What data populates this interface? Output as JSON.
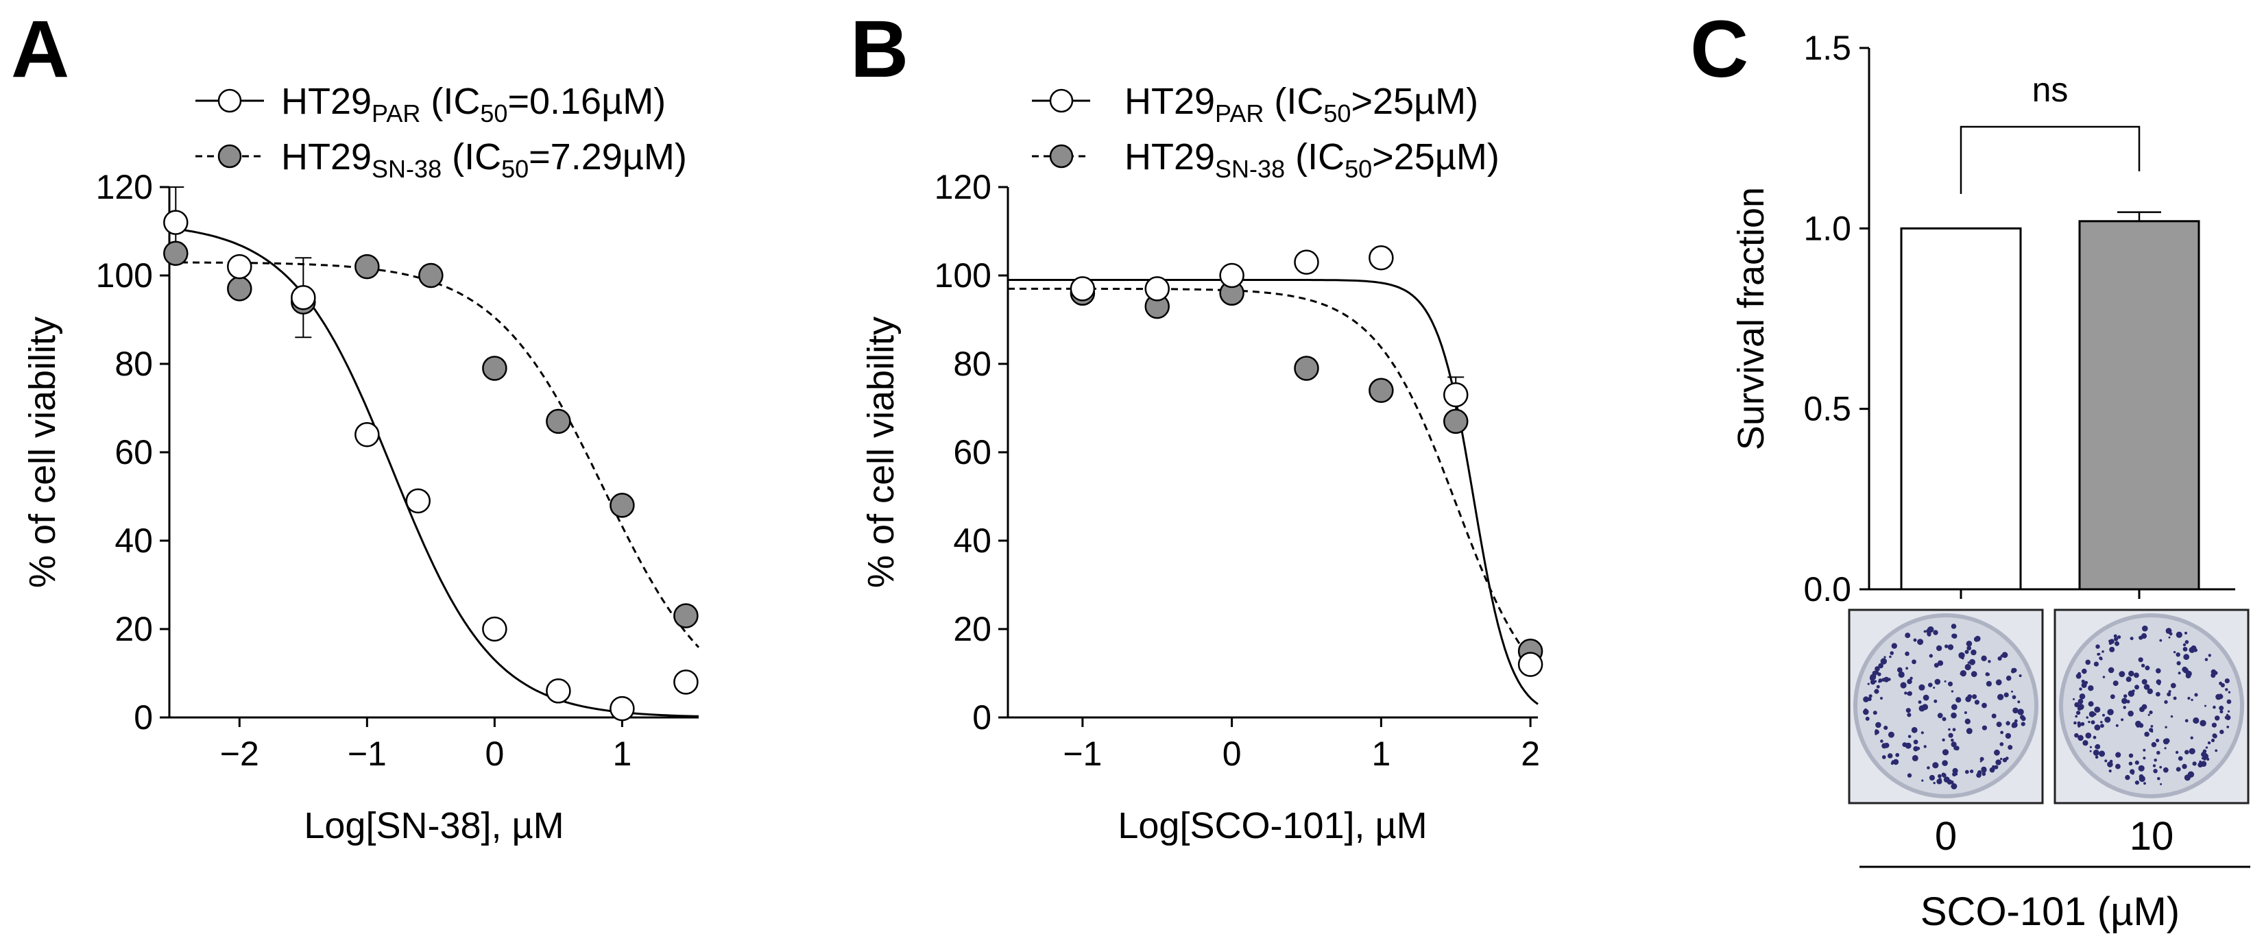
{
  "panels": {
    "a": {
      "letter": "A",
      "xlabel": "Log[SN-38], µM",
      "ylabel": "% of cell viability",
      "legend": [
        {
          "base": "HT29",
          "sub": "PAR",
          "pre": " (IC",
          "ic_sub": "50",
          "post": "=0.16µM)"
        },
        {
          "base": "HT29",
          "sub": "SN-38",
          "pre": " (IC",
          "ic_sub": "50",
          "post": "=7.29µM)"
        }
      ],
      "xticks": [
        "−2",
        "−1",
        "0",
        "1"
      ],
      "yticks": [
        "0",
        "20",
        "40",
        "60",
        "80",
        "100",
        "120"
      ]
    },
    "b": {
      "letter": "B",
      "xlabel": "Log[SCO-101], µM",
      "ylabel": "% of cell viability",
      "legend": [
        {
          "base": "HT29",
          "sub": "PAR",
          "pre": " (IC",
          "ic_sub": "50",
          "post": ">25µM)"
        },
        {
          "base": "HT29",
          "sub": "SN-38",
          "pre": " (IC",
          "ic_sub": "50",
          "post": ">25µM)"
        }
      ],
      "xticks": [
        "−1",
        "0",
        "1",
        "2"
      ],
      "yticks": [
        "0",
        "20",
        "40",
        "60",
        "80",
        "100",
        "120"
      ]
    },
    "c": {
      "letter": "C",
      "ylabel": "Survival fraction",
      "yticks": [
        "0.0",
        "0.5",
        "1.0",
        "1.5"
      ],
      "significance": "ns",
      "categories": [
        "0",
        "10"
      ],
      "group_label": "SCO-101 (µM)"
    }
  },
  "colors": {
    "par_fill": "#ffffff",
    "sn38_fill": "#8c8c8c",
    "bar_control": "#ffffff",
    "bar_treated": "#999999",
    "colony_stain": "#2b2a6e",
    "dish_background": "#dfe2ea"
  },
  "chart_data": [
    {
      "panel": "A",
      "type": "scatter",
      "fit": "sigmoidal dose-response",
      "xlabel": "Log[SN-38], µM",
      "ylabel": "% of cell viability",
      "xlim": [
        -2.55,
        1.6
      ],
      "ylim": [
        0,
        120
      ],
      "grid": false,
      "legend_position": "top",
      "series": [
        {
          "name": "HT29PAR (IC50=0.16µM)",
          "line": "solid",
          "marker_fill": "white",
          "x": [
            -2.5,
            -2.0,
            -1.5,
            -1.0,
            -0.6,
            0.0,
            0.5,
            1.0,
            1.5
          ],
          "y": [
            112,
            102,
            95,
            64,
            49,
            20,
            6,
            2,
            8
          ],
          "fit": {
            "top": 112,
            "bottom": 0,
            "logIC50": -0.8,
            "hill": 1.1
          }
        },
        {
          "name": "HT29SN-38 (IC50=7.29µM)",
          "line": "dashed",
          "marker_fill": "gray",
          "x": [
            -2.5,
            -2.0,
            -1.5,
            -1.0,
            -0.5,
            0.0,
            0.5,
            1.0,
            1.5
          ],
          "y": [
            105,
            97,
            94,
            102,
            100,
            79,
            67,
            48,
            23
          ],
          "fit": {
            "top": 103,
            "bottom": 0,
            "logIC50": 0.86,
            "hill": 1.0
          }
        }
      ]
    },
    {
      "panel": "B",
      "type": "scatter",
      "fit": "sigmoidal dose-response",
      "xlabel": "Log[SCO-101], µM",
      "ylabel": "% of cell viability",
      "xlim": [
        -1.5,
        2.05
      ],
      "ylim": [
        0,
        120
      ],
      "grid": false,
      "legend_position": "top",
      "series": [
        {
          "name": "HT29PAR (IC50>25µM)",
          "line": "solid",
          "marker_fill": "white",
          "x": [
            -1.0,
            -0.5,
            0.0,
            0.5,
            1.0,
            1.5,
            2.0
          ],
          "y": [
            97,
            97,
            100,
            103,
            104,
            73,
            12
          ],
          "fit": {
            "top": 99,
            "bottom": 0,
            "logIC50": 1.62,
            "hill": 3.5
          }
        },
        {
          "name": "HT29SN-38 (IC50>25µM)",
          "line": "dashed",
          "marker_fill": "gray",
          "x": [
            -1.0,
            -0.5,
            0.0,
            0.5,
            1.0,
            1.5,
            2.0
          ],
          "y": [
            96,
            93,
            96,
            79,
            74,
            67,
            15
          ],
          "fit": {
            "top": 97,
            "bottom": 0,
            "logIC50": 1.5,
            "hill": 1.6
          }
        }
      ]
    },
    {
      "panel": "C",
      "type": "bar",
      "categories": [
        "0",
        "10"
      ],
      "values": [
        1.0,
        1.02
      ],
      "error": [
        0.0,
        0.025
      ],
      "ylabel": "Survival fraction",
      "xlabel": "SCO-101 (µM)",
      "ylim": [
        0,
        1.5
      ],
      "annotation": "ns"
    }
  ]
}
